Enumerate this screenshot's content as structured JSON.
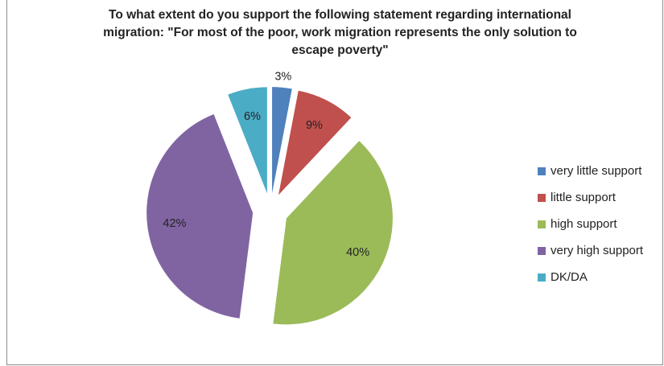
{
  "chart_data": {
    "type": "pie",
    "title_lines": [
      "To what extent do you support the following statement regarding international",
      "migration: \"For most of the poor, work migration represents the only solution to",
      "escape poverty\""
    ],
    "categories": [
      "very little support",
      "little support",
      "high support",
      "very high support",
      "DK/DA"
    ],
    "values": [
      3,
      9,
      40,
      42,
      6
    ],
    "labels": [
      "3%",
      "9%",
      "40%",
      "42%",
      "6%"
    ],
    "colors": [
      "#4f81bd",
      "#c0504d",
      "#9bbb59",
      "#8064a2",
      "#4bacc6"
    ],
    "legend_position": "right",
    "exploded": true
  }
}
